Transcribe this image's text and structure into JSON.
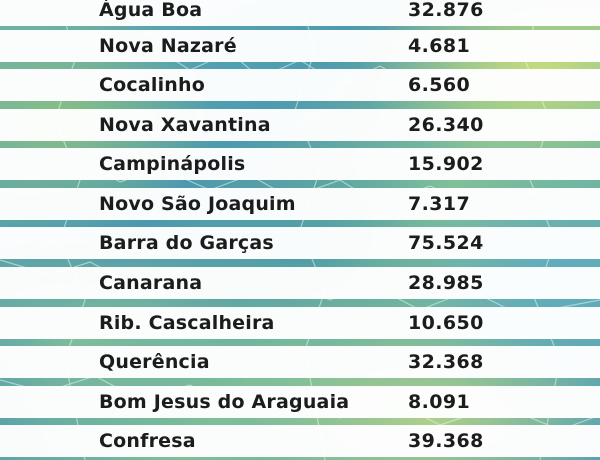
{
  "rows": [
    {
      "municipio": "Água Boa",
      "valor": "32.876"
    },
    {
      "municipio": "Nova Nazaré",
      "valor": "4.681"
    },
    {
      "municipio": "Cocalinho",
      "valor": "6.560"
    },
    {
      "municipio": "Nova Xavantina",
      "valor": "26.340"
    },
    {
      "municipio": "Campinápolis",
      "valor": "15.902"
    },
    {
      "municipio": "Novo São Joaquim",
      "valor": "7.317"
    },
    {
      "municipio": "Barra do Garças",
      "valor": "75.524"
    },
    {
      "municipio": "Canarana",
      "valor": "28.985"
    },
    {
      "municipio": "Rib. Cascalheira",
      "valor": "10.650"
    },
    {
      "municipio": "Querência",
      "valor": "32.368"
    },
    {
      "municipio": "Bom Jesus do Araguaia",
      "valor": "8.091"
    },
    {
      "municipio": "Confresa",
      "valor": "39.368"
    }
  ]
}
